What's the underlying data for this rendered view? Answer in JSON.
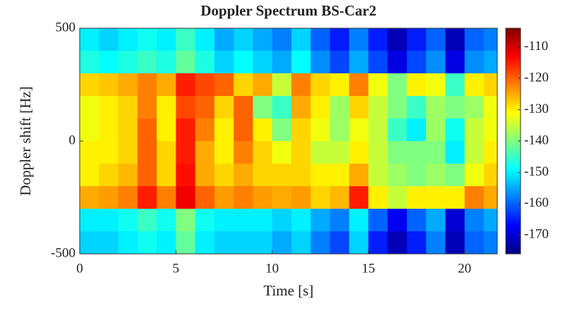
{
  "chart_data": {
    "type": "heatmap",
    "title": "Doppler Spectrum BS-Car2",
    "xlabel": "Time [s]",
    "ylabel": "Doppler shift [Hz]",
    "colormap": "jet",
    "xlim": [
      0,
      21.7
    ],
    "ylim": [
      -500,
      500
    ],
    "xticks": [
      0,
      5,
      10,
      15,
      20
    ],
    "yticks": [
      -500,
      0,
      500
    ],
    "clim": [
      -176,
      -104
    ],
    "cticks": [
      -170,
      -160,
      -150,
      -140,
      -130,
      -120,
      -110
    ],
    "x": [
      0.5,
      1.5,
      2.5,
      3.5,
      4.5,
      5.5,
      6.5,
      7.5,
      8.5,
      9.5,
      10.5,
      11.5,
      12.5,
      13.5,
      14.5,
      15.5,
      16.5,
      17.5,
      18.5,
      19.5,
      20.5,
      21.5
    ],
    "y": [
      450,
      350,
      250,
      150,
      50,
      -50,
      -150,
      -250,
      -350,
      -450
    ],
    "z": [
      [
        -150,
        -152,
        -150,
        -148,
        -150,
        -145,
        -150,
        -155,
        -152,
        -155,
        -158,
        -152,
        -160,
        -165,
        -158,
        -165,
        -172,
        -165,
        -160,
        -172,
        -160,
        -158
      ],
      [
        -147,
        -149,
        -147,
        -145,
        -147,
        -142,
        -147,
        -152,
        -149,
        -152,
        -155,
        -149,
        -157,
        -162,
        -155,
        -162,
        -169,
        -162,
        -157,
        -169,
        -157,
        -155
      ],
      [
        -128,
        -127,
        -125,
        -122,
        -125,
        -115,
        -118,
        -120,
        -128,
        -125,
        -135,
        -122,
        -128,
        -130,
        -122,
        -132,
        -140,
        -130,
        -132,
        -145,
        -130,
        -128
      ],
      [
        -132,
        -130,
        -128,
        -122,
        -130,
        -118,
        -120,
        -128,
        -120,
        -140,
        -145,
        -125,
        -130,
        -138,
        -128,
        -135,
        -140,
        -145,
        -138,
        -140,
        -138,
        -132
      ],
      [
        -132,
        -130,
        -128,
        -120,
        -130,
        -115,
        -122,
        -130,
        -120,
        -130,
        -140,
        -128,
        -132,
        -138,
        -132,
        -135,
        -145,
        -150,
        -138,
        -148,
        -135,
        -132
      ],
      [
        -130,
        -130,
        -128,
        -120,
        -128,
        -115,
        -125,
        -130,
        -122,
        -128,
        -132,
        -128,
        -135,
        -135,
        -130,
        -135,
        -140,
        -140,
        -140,
        -150,
        -135,
        -130
      ],
      [
        -130,
        -128,
        -126,
        -120,
        -128,
        -114,
        -125,
        -128,
        -125,
        -128,
        -128,
        -128,
        -130,
        -130,
        -125,
        -135,
        -138,
        -140,
        -138,
        -140,
        -132,
        -128
      ],
      [
        -125,
        -124,
        -122,
        -115,
        -122,
        -112,
        -120,
        -124,
        -122,
        -124,
        -125,
        -124,
        -128,
        -126,
        -115,
        -130,
        -135,
        -130,
        -130,
        -130,
        -122,
        -125
      ],
      [
        -150,
        -150,
        -148,
        -145,
        -148,
        -140,
        -148,
        -150,
        -150,
        -150,
        -152,
        -150,
        -155,
        -158,
        -150,
        -160,
        -168,
        -160,
        -155,
        -170,
        -158,
        -155
      ],
      [
        -152,
        -152,
        -150,
        -148,
        -150,
        -142,
        -150,
        -152,
        -152,
        -152,
        -155,
        -152,
        -158,
        -162,
        -152,
        -165,
        -172,
        -165,
        -158,
        -172,
        -160,
        -158
      ]
    ]
  }
}
